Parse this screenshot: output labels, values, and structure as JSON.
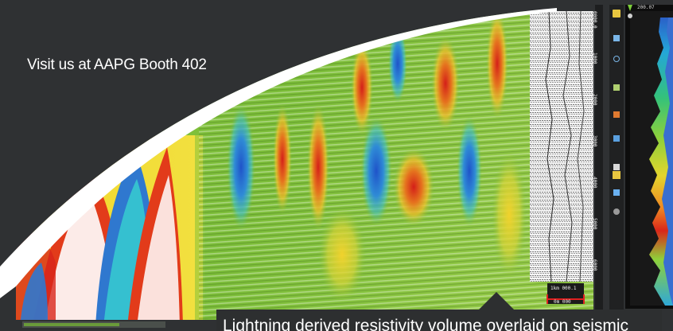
{
  "headline": "Visit us at AAPG Booth 402",
  "caption": "Lightning derived resistivity volume overlaid on seismic",
  "colors": {
    "background": "#2f3133",
    "arc": "#ffffff",
    "seismic_green": "#7fbf3a",
    "resistivity_red": "#d8261a",
    "resistivity_blue": "#2d6fd0",
    "track_panel": "#111111"
  },
  "toolbar": {
    "icons": [
      "cursor-icon",
      "pan-icon",
      "zoom-icon",
      "ruler-icon",
      "layers-icon",
      "chart-icon",
      "grid-icon",
      "palette-icon",
      "export-icon",
      "settings-icon"
    ]
  },
  "track": {
    "top_readout": "200.07",
    "scale_labels": [
      "0000.0",
      "1000",
      "2000",
      "3000",
      "4000",
      "5000",
      "6000"
    ]
  },
  "scale_bar": {
    "label_top": "1km 000.1",
    "label_bottom": "0m 000"
  }
}
